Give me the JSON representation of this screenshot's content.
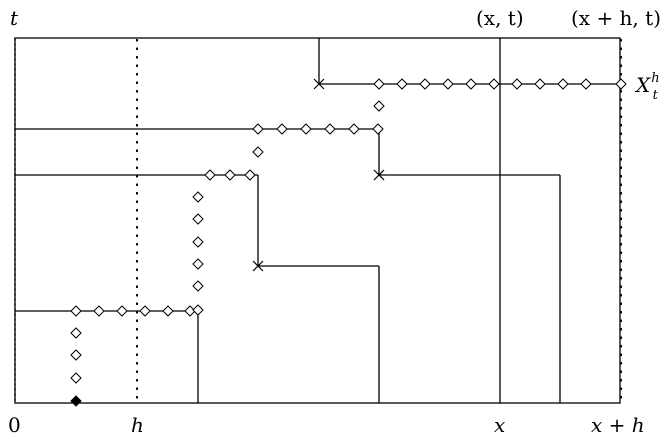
{
  "labels": {
    "t_axis": "t",
    "point_xt": "(x, t)",
    "point_xht": "(x + h, t)",
    "origin": "0",
    "h": "h",
    "x": "x",
    "x_plus_h": "x + h",
    "process_main": "X",
    "process_sub": "t",
    "process_sup": "h"
  }
}
